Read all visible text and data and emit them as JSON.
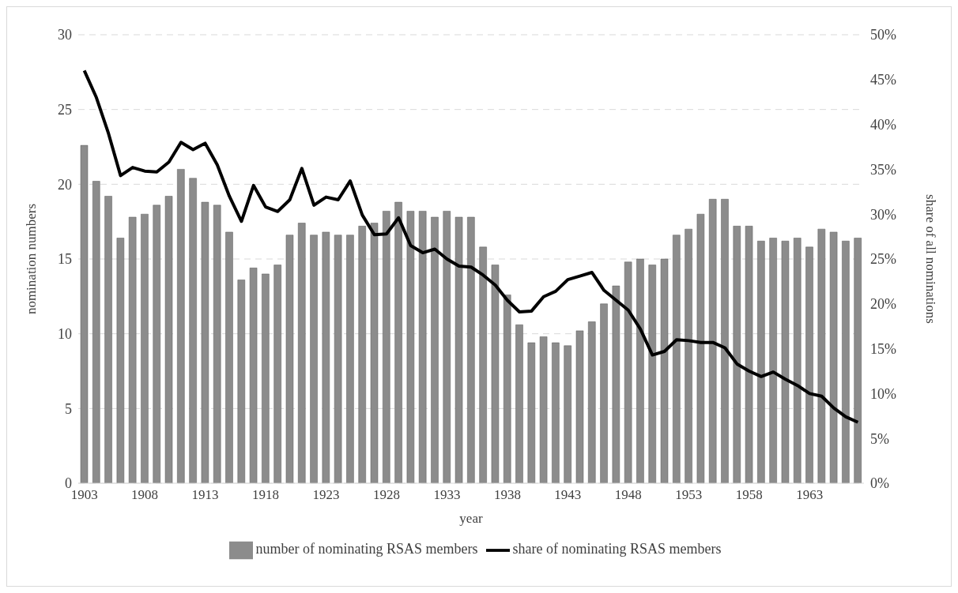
{
  "chart_data": {
    "type": "bar",
    "xlabel": "year",
    "ylabel": "nomination numbers",
    "y2label": "share of all nominations",
    "categories": [
      "1903",
      null,
      null,
      null,
      null,
      "1908",
      null,
      null,
      null,
      null,
      "1913",
      null,
      null,
      null,
      null,
      "1918",
      null,
      null,
      null,
      null,
      "1923",
      null,
      null,
      null,
      null,
      "1928",
      null,
      null,
      null,
      null,
      "1933",
      null,
      null,
      null,
      null,
      "1938",
      null,
      null,
      null,
      null,
      "1943",
      null,
      null,
      null,
      null,
      "1948",
      null,
      null,
      null,
      null,
      "1953",
      null,
      null,
      null,
      null,
      "1958",
      null,
      null,
      null,
      null,
      "1963",
      null,
      null,
      null,
      null
    ],
    "series": [
      {
        "name": "number of nominating RSAS members",
        "color": "#8c8c8c",
        "values": [
          22.6,
          20.2,
          19.2,
          16.4,
          17.8,
          18.0,
          18.6,
          19.2,
          21.0,
          20.4,
          18.8,
          18.6,
          16.8,
          13.6,
          14.4,
          14.0,
          14.6,
          16.6,
          17.4,
          16.6,
          16.8,
          16.6,
          16.6,
          17.2,
          17.4,
          18.2,
          18.8,
          18.2,
          18.2,
          17.8,
          18.2,
          17.8,
          17.8,
          15.8,
          14.6,
          12.6,
          10.6,
          9.4,
          9.8,
          9.4,
          9.2,
          10.2,
          10.8,
          12.0,
          13.2,
          14.8,
          15.0,
          14.6,
          15.0,
          16.6,
          17.0,
          18.0,
          19.0,
          19.0,
          17.2,
          17.2,
          16.2,
          16.4,
          16.2,
          16.4,
          15.8,
          17.0,
          16.8,
          16.2,
          16.4
        ]
      },
      {
        "name": "share of nominating RSAS members",
        "type": "line",
        "axis": "y2",
        "color": "#000000",
        "values": [
          46,
          43,
          39,
          34.3,
          35.2,
          34.8,
          34.7,
          35.8,
          38,
          37.2,
          37.9,
          35.5,
          32,
          29.2,
          33.2,
          30.8,
          30.3,
          31.6,
          35.1,
          31,
          31.9,
          31.6,
          33.7,
          29.9,
          27.7,
          27.8,
          29.6,
          26.5,
          25.7,
          26.1,
          25,
          24.2,
          24.1,
          23.2,
          22.1,
          20.4,
          19.1,
          19.2,
          20.8,
          21.4,
          22.7,
          23.1,
          23.5,
          21.5,
          20.4,
          19.3,
          17.2,
          14.3,
          14.7,
          16,
          15.9,
          15.7,
          15.7,
          15.1,
          13.3,
          12.5,
          11.9,
          12.4,
          11.6,
          10.9,
          10,
          9.7,
          8.4,
          7.4,
          6.8
        ]
      }
    ],
    "ylim": [
      0,
      30
    ],
    "yticks": [
      0,
      5,
      10,
      15,
      20,
      25,
      30
    ],
    "y2lim": [
      0,
      50
    ],
    "y2ticks": [
      {
        "value": 0,
        "label": "0%"
      },
      {
        "value": 5,
        "label": "5%"
      },
      {
        "value": 10,
        "label": "10%"
      },
      {
        "value": 15,
        "label": "15%"
      },
      {
        "value": 20,
        "label": "20%"
      },
      {
        "value": 25,
        "label": "25%"
      },
      {
        "value": 30,
        "label": "30%"
      },
      {
        "value": 35,
        "label": "35%"
      },
      {
        "value": 40,
        "label": "40%"
      },
      {
        "value": 45,
        "label": "45%"
      },
      {
        "value": 50,
        "label": "50%"
      }
    ],
    "grid": "y",
    "legend": "bottom",
    "marker": "none",
    "line_style": "solid"
  }
}
